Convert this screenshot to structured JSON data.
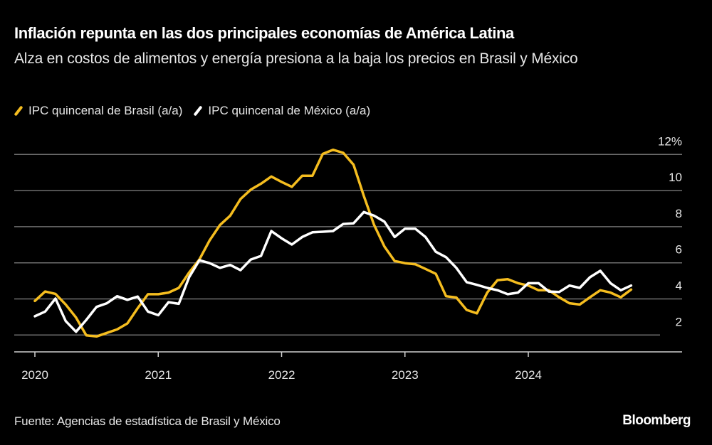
{
  "header": {
    "title": "Inflación repunta en las dos principales economías de América Latina",
    "subtitle": "Alza en costos de alimentos y energía presiona a la baja los precios en Brasil y México"
  },
  "footer": {
    "source": "Fuente: Agencias de estadística de Brasil y México",
    "logo": "Bloomberg"
  },
  "chart_data": {
    "type": "line",
    "title": "",
    "xlabel": "",
    "ylabel": "",
    "ylim": [
      1,
      12
    ],
    "y_ticks": [
      2,
      4,
      6,
      8,
      10,
      12
    ],
    "y_tick_labels": [
      "2",
      "4",
      "6",
      "8",
      "10",
      "12%"
    ],
    "x_ticks": [
      "2020",
      "2021",
      "2022",
      "2023",
      "2024"
    ],
    "grid": true,
    "legend_position": "top-left",
    "y_axis_side": "right",
    "x": [
      "2020-01",
      "2020-02",
      "2020-03",
      "2020-04",
      "2020-05",
      "2020-06",
      "2020-07",
      "2020-08",
      "2020-09",
      "2020-10",
      "2020-11",
      "2020-12",
      "2021-01",
      "2021-02",
      "2021-03",
      "2021-04",
      "2021-05",
      "2021-06",
      "2021-07",
      "2021-08",
      "2021-09",
      "2021-10",
      "2021-11",
      "2021-12",
      "2022-01",
      "2022-02",
      "2022-03",
      "2022-04",
      "2022-05",
      "2022-06",
      "2022-07",
      "2022-08",
      "2022-09",
      "2022-10",
      "2022-11",
      "2022-12",
      "2023-01",
      "2023-02",
      "2023-03",
      "2023-04",
      "2023-05",
      "2023-06",
      "2023-07",
      "2023-08",
      "2023-09",
      "2023-10",
      "2023-11",
      "2023-12",
      "2024-01",
      "2024-02",
      "2024-03",
      "2024-04",
      "2024-05",
      "2024-06",
      "2024-07",
      "2024-08",
      "2024-09",
      "2024-10",
      "2024-11"
    ],
    "series": [
      {
        "name": "IPC quincenal de Brasil (a/a)",
        "color": "#f5bd1f",
        "values": [
          3.89,
          4.41,
          4.28,
          3.69,
          2.97,
          1.98,
          1.92,
          2.12,
          2.31,
          2.64,
          3.49,
          4.26,
          4.26,
          4.35,
          4.61,
          5.46,
          6.18,
          7.24,
          8.09,
          8.61,
          9.53,
          10.05,
          10.38,
          10.78,
          10.48,
          10.21,
          10.82,
          10.82,
          12.03,
          12.26,
          12.09,
          11.43,
          9.7,
          8.1,
          6.9,
          6.1,
          5.98,
          5.92,
          5.66,
          5.39,
          4.15,
          4.08,
          3.39,
          3.2,
          4.35,
          5.04,
          5.09,
          4.87,
          4.74,
          4.48,
          4.48,
          4.09,
          3.76,
          3.69,
          4.09,
          4.48,
          4.35,
          4.09,
          4.52
        ]
      },
      {
        "name": "IPC quincenal de México (a/a)",
        "color": "#ffffff",
        "values": [
          3.04,
          3.3,
          4.02,
          2.77,
          2.18,
          2.84,
          3.56,
          3.76,
          4.15,
          3.95,
          4.13,
          3.3,
          3.1,
          3.82,
          3.73,
          5.2,
          6.14,
          5.98,
          5.72,
          5.88,
          5.59,
          6.18,
          6.38,
          7.76,
          7.36,
          7.01,
          7.43,
          7.69,
          7.72,
          7.76,
          8.15,
          8.19,
          8.81,
          8.61,
          8.28,
          7.43,
          7.89,
          7.89,
          7.43,
          6.61,
          6.31,
          5.72,
          4.93,
          4.78,
          4.61,
          4.48,
          4.26,
          4.35,
          4.87,
          4.87,
          4.41,
          4.38,
          4.74,
          4.61,
          5.2,
          5.56,
          4.87,
          4.48,
          4.74
        ]
      }
    ]
  }
}
